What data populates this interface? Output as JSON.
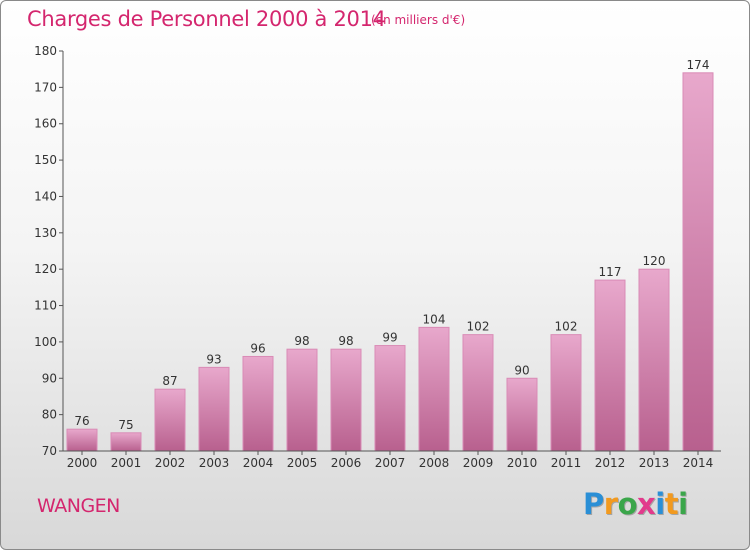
{
  "title": "Charges de Personnel 2000 à 2014",
  "subtitle": "(en milliers d'€)",
  "city": "WANGEN",
  "logo": {
    "letters": [
      "P",
      "r",
      "o",
      "x",
      "i",
      "t",
      "i"
    ],
    "colors": [
      "#2a8fd6",
      "#f29a1f",
      "#3aa64a",
      "#e23a8c",
      "#2a8fd6",
      "#f29a1f",
      "#3aa64a"
    ]
  },
  "colors": {
    "bar_light": "#e8a8cc",
    "bar_dark": "#b8608e",
    "accent": "#d4266e"
  },
  "chart_data": {
    "type": "bar",
    "categories": [
      "2000",
      "2001",
      "2002",
      "2003",
      "2004",
      "2005",
      "2006",
      "2007",
      "2008",
      "2009",
      "2010",
      "2011",
      "2012",
      "2013",
      "2014"
    ],
    "values": [
      76,
      75,
      87,
      93,
      96,
      98,
      98,
      99,
      104,
      102,
      90,
      102,
      117,
      120,
      174
    ],
    "data_labels": [
      "76",
      "75",
      "87",
      "93",
      "96",
      "98",
      "98",
      "99",
      "104",
      "102",
      "90",
      "102",
      "117",
      "120",
      "174"
    ],
    "yticks": [
      "70",
      "80",
      "90",
      "100",
      "110",
      "120",
      "130",
      "140",
      "150",
      "160",
      "170",
      "180"
    ],
    "ylim": [
      70,
      180
    ],
    "title": "Charges de Personnel 2000 à 2014",
    "xlabel": "",
    "ylabel": "",
    "grid": false,
    "legend": "none"
  }
}
